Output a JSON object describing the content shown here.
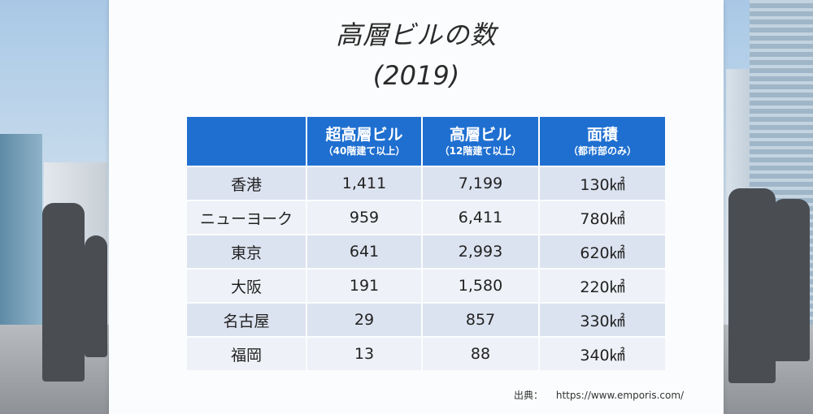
{
  "slide": {
    "title": "高層ビルの数",
    "year": "(2019)"
  },
  "table": {
    "headers": [
      {
        "main": "",
        "sub": ""
      },
      {
        "main": "超高層ビル",
        "sub": "（40階建て以上）"
      },
      {
        "main": "高層ビル",
        "sub": "（12階建て以上）"
      },
      {
        "main": "面積",
        "sub": "（都市部のみ）"
      }
    ],
    "rows": [
      {
        "city": "香港",
        "super": "1,411",
        "high": "7,199",
        "area": "130㎢"
      },
      {
        "city": "ニューヨーク",
        "super": "959",
        "high": "6,411",
        "area": "780㎢"
      },
      {
        "city": "東京",
        "super": "641",
        "high": "2,993",
        "area": "620㎢"
      },
      {
        "city": "大阪",
        "super": "191",
        "high": "1,580",
        "area": "220㎢"
      },
      {
        "city": "名古屋",
        "super": "29",
        "high": "857",
        "area": "330㎢"
      },
      {
        "city": "福岡",
        "super": "13",
        "high": "88",
        "area": "340㎢"
      }
    ]
  },
  "source": {
    "label": "出典：",
    "url": "https://www.emporis.com/"
  },
  "colors": {
    "header_bg": "#1f6fd0",
    "row_dark": "#dce3f0",
    "row_light": "#eef1f7"
  }
}
